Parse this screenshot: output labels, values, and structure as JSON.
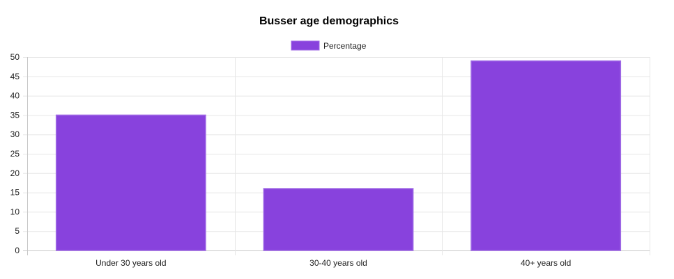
{
  "chart_data": {
    "type": "bar",
    "title": "Busser age demographics",
    "categories": [
      "Under 30 years old",
      "30-40 years old",
      "40+ years old"
    ],
    "series": [
      {
        "name": "Percentage",
        "values": [
          35,
          16,
          49
        ],
        "color": "#8842dd",
        "border_color": "#a06be6"
      }
    ],
    "ylim": [
      0,
      50
    ],
    "yticks": [
      0,
      5,
      10,
      15,
      20,
      25,
      30,
      35,
      40,
      45,
      50
    ],
    "grid": true,
    "legend": "top-center"
  }
}
